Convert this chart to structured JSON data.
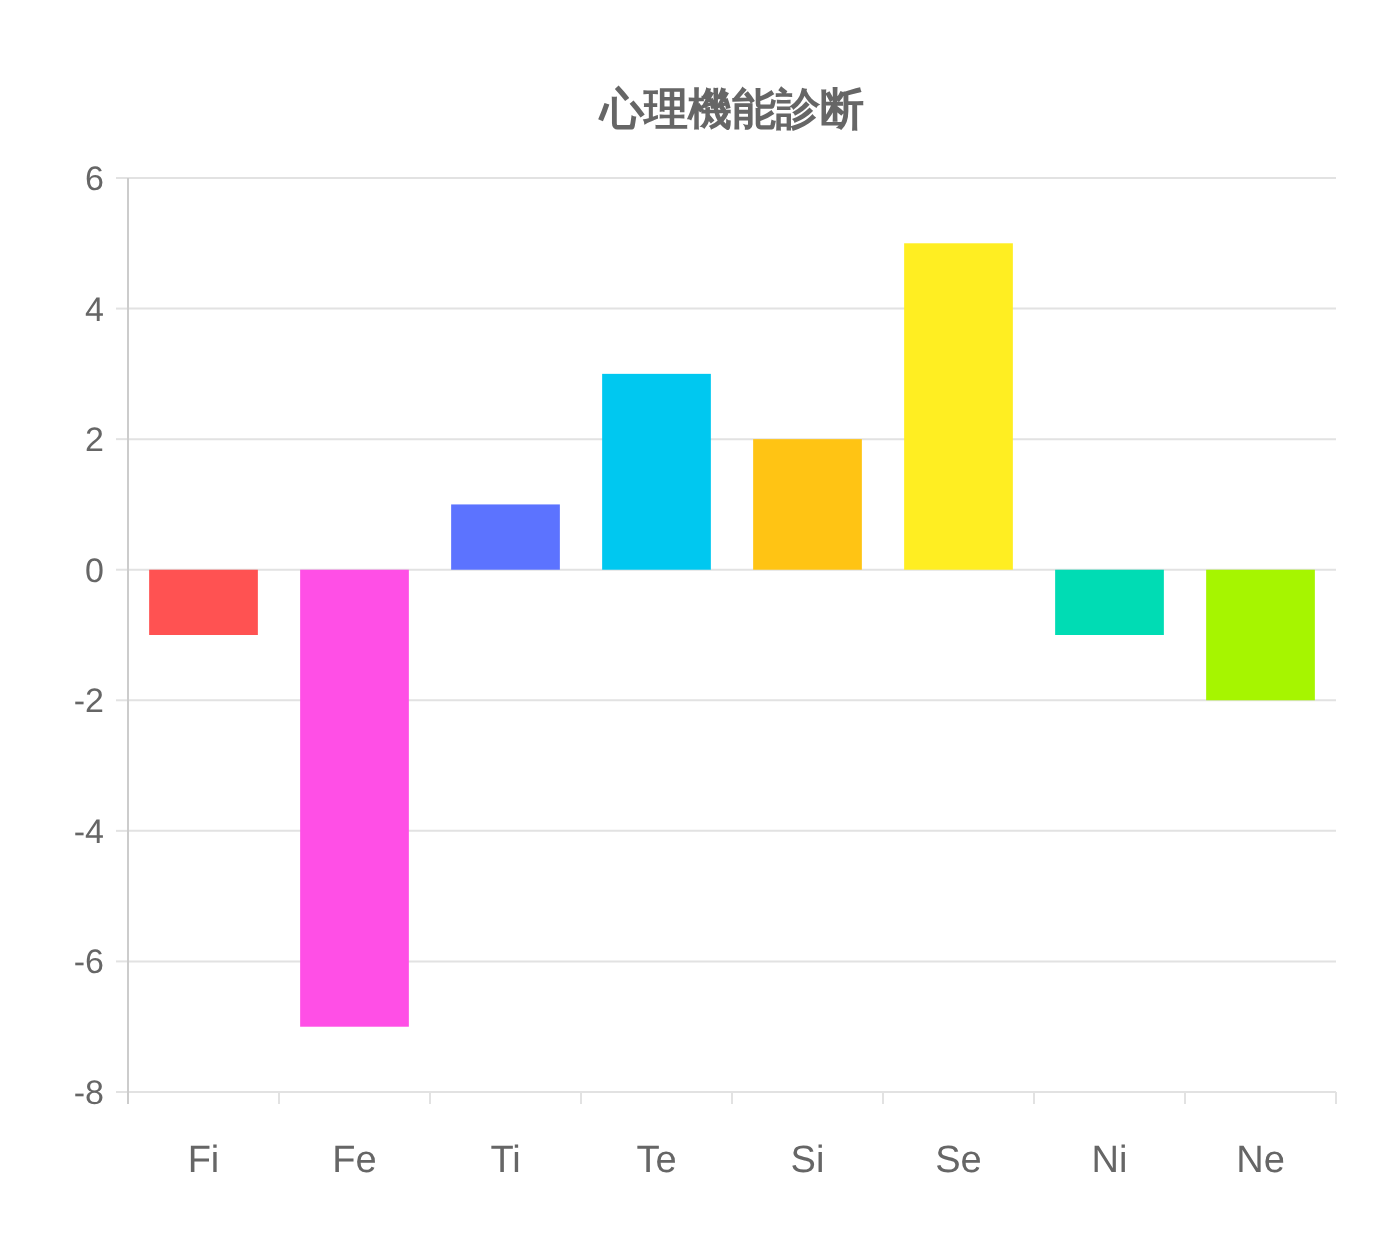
{
  "chart_data": {
    "type": "bar",
    "title": "心理機能診断",
    "categories": [
      "Fi",
      "Fe",
      "Ti",
      "Te",
      "Si",
      "Se",
      "Ni",
      "Ne"
    ],
    "values": [
      -1,
      -7,
      1,
      3,
      2,
      5,
      -1,
      -2
    ],
    "colors": [
      "#ff5252",
      "#ff4fe6",
      "#5c73ff",
      "#00c8f0",
      "#ffc414",
      "#ffee22",
      "#00dcb4",
      "#a6f500"
    ],
    "ylim": [
      -8,
      6
    ],
    "yticks": [
      -8,
      -6,
      -4,
      -2,
      0,
      2,
      4,
      6
    ],
    "grid": "y"
  }
}
